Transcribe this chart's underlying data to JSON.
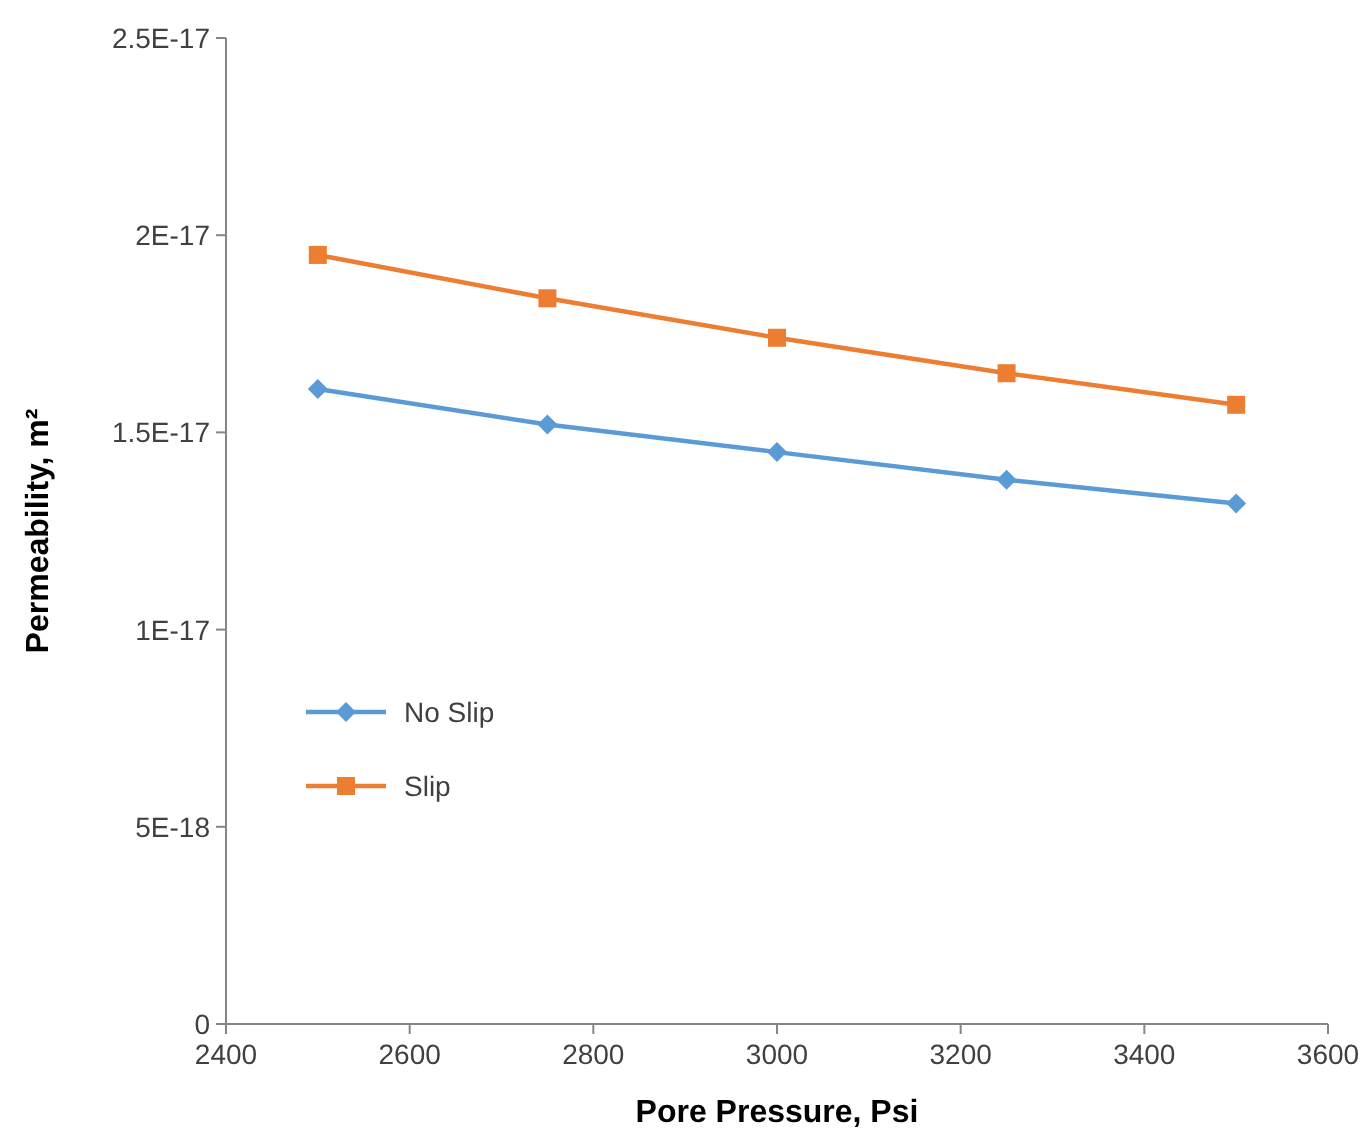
{
  "chart_data": {
    "type": "line",
    "xlabel": "Pore Pressure, Psi",
    "ylabel": "Permeability, m²",
    "x": [
      2500,
      2750,
      3000,
      3250,
      3500
    ],
    "series": [
      {
        "name": "No Slip",
        "color": "#5b9bd5",
        "marker": "diamond",
        "values": [
          1.61e-17,
          1.52e-17,
          1.45e-17,
          1.38e-17,
          1.32e-17
        ]
      },
      {
        "name": "Slip",
        "color": "#ed7d31",
        "marker": "square",
        "values": [
          1.95e-17,
          1.84e-17,
          1.74e-17,
          1.65e-17,
          1.57e-17
        ]
      }
    ],
    "xlim": [
      2400,
      3600
    ],
    "xticks": [
      2400,
      2600,
      2800,
      3000,
      3200,
      3400,
      3600
    ],
    "ylim": [
      0,
      2.5e-17
    ],
    "yticks": [
      0,
      {
        "value": 5e-18,
        "label": "5E-18"
      },
      {
        "value": 1e-17,
        "label": "1E-17"
      },
      {
        "value": 1.5e-17,
        "label": "1.5E-17"
      },
      {
        "value": 2e-17,
        "label": "2E-17"
      },
      {
        "value": 2.5e-17,
        "label": "2.5E-17"
      }
    ],
    "grid": false,
    "legend": "left",
    "line_style": "solid"
  }
}
